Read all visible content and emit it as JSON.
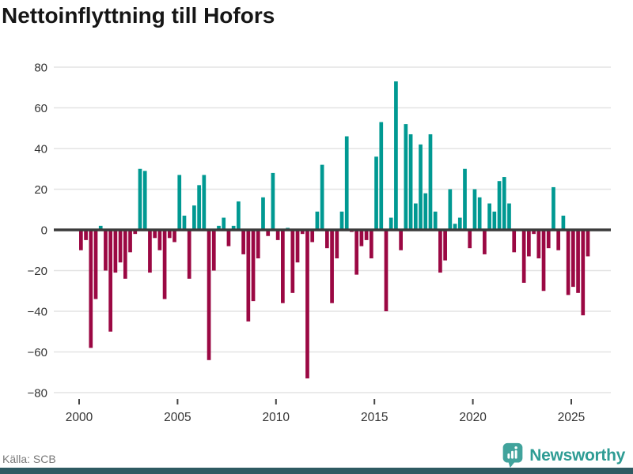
{
  "title": "Nettoinflyttning till Hofors",
  "footer": {
    "source": "Källa: SCB",
    "brand": "Newsworthy"
  },
  "colors": {
    "positive": "#009992",
    "negative": "#9B0843",
    "zero_line": "#3B3B3B",
    "grid": "#E3E3E3",
    "axis_text": "#333333",
    "tick_mark": "#444444",
    "title_text": "#161616",
    "source_text": "#787878",
    "brand_text": "#2E9C94",
    "brand_badge": "#41A39C",
    "bottom_strip": "#2E5A62"
  },
  "chart_data": {
    "type": "bar",
    "title": "Nettoinflyttning till Hofors",
    "frequency": "quarterly",
    "start": "2000-Q1",
    "unit": "persons (net migration per quarter)",
    "x_tick_years": [
      2000,
      2005,
      2010,
      2015,
      2020,
      2025
    ],
    "x_range_years": [
      1999.7,
      2026.3
    ],
    "y_ticks": [
      -80,
      -60,
      -40,
      -20,
      0,
      20,
      40,
      60,
      80
    ],
    "ylim": [
      -80,
      80
    ],
    "grid": "horizontal-only",
    "legend": "none",
    "values": [
      -10,
      -5,
      -58,
      -34,
      2,
      -20,
      -50,
      -21,
      -16,
      -24,
      -11,
      -2,
      30,
      29,
      -21,
      -4,
      -10,
      -34,
      -4,
      -6,
      27,
      7,
      -24,
      12,
      22,
      27,
      -64,
      -20,
      2,
      6,
      -8,
      2,
      14,
      -12,
      -45,
      -35,
      -14,
      16,
      -3,
      28,
      -5,
      -36,
      1,
      -31,
      -16,
      -2,
      -73,
      -6,
      9,
      32,
      -9,
      -36,
      -14,
      9,
      46,
      -1,
      -22,
      -8,
      -5,
      -14,
      36,
      53,
      -40,
      6,
      73,
      -10,
      52,
      47,
      13,
      42,
      18,
      47,
      9,
      -21,
      -15,
      20,
      3,
      6,
      30,
      -9,
      20,
      16,
      -12,
      13,
      9,
      24,
      26,
      13,
      -11,
      0,
      -26,
      -13,
      -2,
      -14,
      -30,
      -9,
      21,
      -10,
      7,
      -32,
      -28,
      -31,
      -42,
      -13
    ]
  }
}
